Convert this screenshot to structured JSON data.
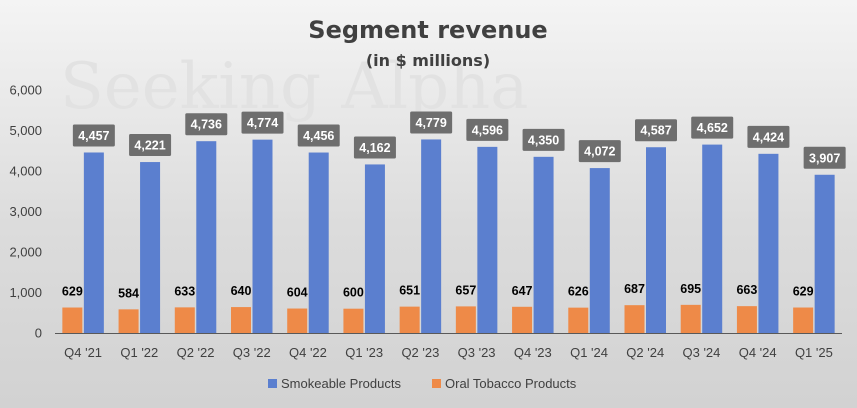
{
  "watermark": "Seeking Alpha",
  "colors": {
    "smokeable": "#5b7fcf",
    "oral": "#ee8a48",
    "label_box": "#6e6e6e",
    "axis": "#595959",
    "grid": "#bdbdbd"
  },
  "chart_data": {
    "type": "bar",
    "title": "Segment revenue",
    "subtitle": "(in $ millions)",
    "xlabel": "",
    "ylabel": "",
    "ylim": [
      0,
      6000
    ],
    "yticks": [
      0,
      1000,
      2000,
      3000,
      4000,
      5000,
      6000
    ],
    "ytick_labels": [
      "0",
      "1,000",
      "2,000",
      "3,000",
      "4,000",
      "5,000",
      "6,000"
    ],
    "grid": false,
    "legend_position": "bottom",
    "categories": [
      "Q4 '21",
      "Q1 '22",
      "Q2 '22",
      "Q3 '22",
      "Q4 '22",
      "Q1 '23",
      "Q2 '23",
      "Q3 '23",
      "Q4 '23",
      "Q1 '24",
      "Q2 '24",
      "Q3 '24",
      "Q4 '24",
      "Q1 '25"
    ],
    "series": [
      {
        "name": "Smokeable Products",
        "values": [
          4457,
          4221,
          4736,
          4774,
          4456,
          4162,
          4779,
          4596,
          4350,
          4072,
          4587,
          4652,
          4424,
          3907
        ],
        "labels": [
          "4,457",
          "4,221",
          "4,736",
          "4,774",
          "4,456",
          "4,162",
          "4,779",
          "4,596",
          "4,350",
          "4,072",
          "4,587",
          "4,652",
          "4,424",
          "3,907"
        ]
      },
      {
        "name": "Oral Tobacco Products",
        "values": [
          629,
          584,
          633,
          640,
          604,
          600,
          651,
          657,
          647,
          626,
          687,
          695,
          663,
          629
        ],
        "labels": [
          "629",
          "584",
          "633",
          "640",
          "604",
          "600",
          "651",
          "657",
          "647",
          "626",
          "687",
          "695",
          "663",
          "629"
        ]
      }
    ]
  }
}
